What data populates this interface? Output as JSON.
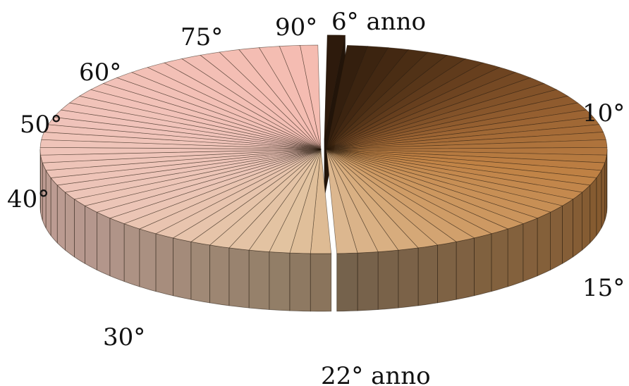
{
  "chart_data": {
    "type": "pie",
    "style": "3d-exploded",
    "first_year": 6,
    "last_year": 90,
    "exploded_year": 6,
    "color_stops": [
      {
        "year": 6,
        "color": "#2d1a0c"
      },
      {
        "year": 10,
        "color": "#4a2d14"
      },
      {
        "year": 15,
        "color": "#6e4421"
      },
      {
        "year": 22,
        "color": "#9c6433"
      },
      {
        "year": 30,
        "color": "#bf8144"
      },
      {
        "year": 40,
        "color": "#cf9c66"
      },
      {
        "year": 50,
        "color": "#e2c3a0"
      },
      {
        "year": 60,
        "color": "#ecc5b7"
      },
      {
        "year": 75,
        "color": "#f1c3ba"
      },
      {
        "year": 90,
        "color": "#f5bcb1"
      }
    ],
    "annotations": [
      {
        "year": 6,
        "text": "6° anno"
      },
      {
        "year": 10,
        "text": "10°"
      },
      {
        "year": 15,
        "text": "15°"
      },
      {
        "year": 22,
        "text": "22° anno"
      },
      {
        "year": 30,
        "text": "30°"
      },
      {
        "year": 40,
        "text": "40°"
      },
      {
        "year": 50,
        "text": "50°"
      },
      {
        "year": 60,
        "text": "60°"
      },
      {
        "year": 75,
        "text": "75°"
      },
      {
        "year": 90,
        "text": "90°"
      }
    ]
  }
}
